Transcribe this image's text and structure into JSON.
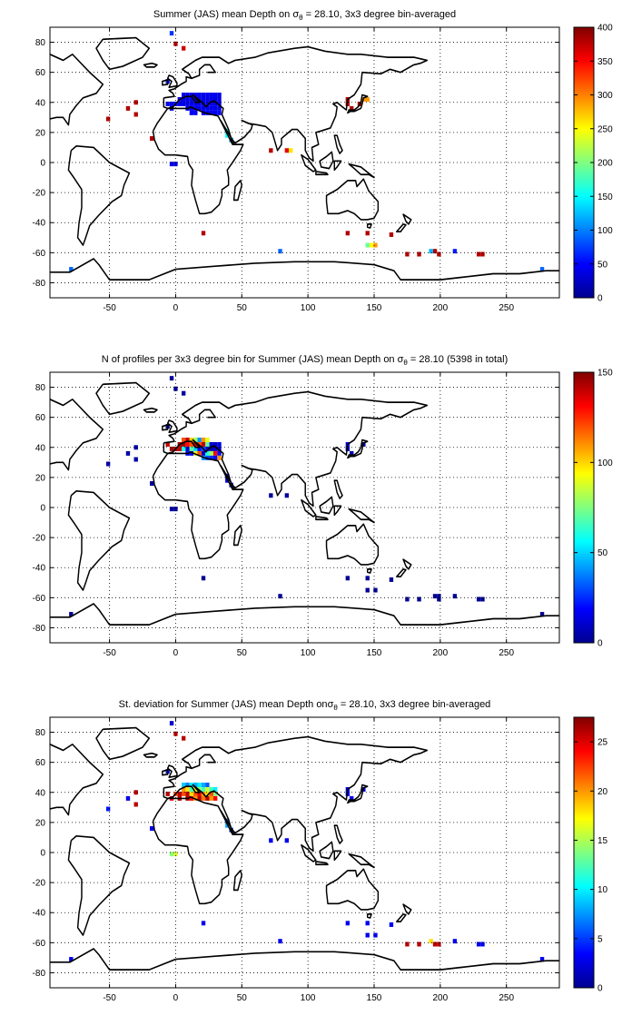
{
  "figure": {
    "background": "#ffffff",
    "axis_color": "#000000",
    "grid_style": "dotted",
    "coastline_color": "#000000"
  },
  "chart_data": [
    {
      "type": "heatmap",
      "panel": "top",
      "title": {
        "prefix": "Summer (JAS) mean Depth on ",
        "symbol": "σ",
        "subscript": "θ",
        "suffix": " = 28.10, 3x3 degree bin-averaged"
      },
      "xlim": [
        -95,
        290
      ],
      "ylim": [
        -90,
        90
      ],
      "xticks": [
        -50,
        0,
        50,
        100,
        150,
        200,
        250
      ],
      "yticks": [
        -80,
        -60,
        -40,
        -20,
        0,
        20,
        40,
        60,
        80
      ],
      "grid": true,
      "colorbar": {
        "colormap": "jet",
        "min": 0,
        "max": 400,
        "ticks": [
          0,
          50,
          100,
          150,
          200,
          250,
          300,
          350,
          400
        ]
      },
      "bins": [
        [
          -3,
          86,
          70
        ],
        [
          0,
          79,
          380
        ],
        [
          6,
          76,
          370
        ],
        [
          -6,
          54,
          60
        ],
        [
          -51,
          29,
          380
        ],
        [
          -36,
          36,
          380
        ],
        [
          -30,
          40,
          380
        ],
        [
          -30,
          32,
          380
        ],
        [
          -18,
          16,
          380
        ],
        [
          -6,
          39,
          45
        ],
        [
          -3,
          39,
          45
        ],
        [
          0,
          39,
          45
        ],
        [
          3,
          39,
          45
        ],
        [
          -3,
          36,
          40
        ],
        [
          3,
          42,
          40
        ],
        [
          6,
          42,
          40
        ],
        [
          9,
          42,
          40
        ],
        [
          12,
          42,
          40
        ],
        [
          15,
          42,
          40
        ],
        [
          18,
          42,
          40
        ],
        [
          21,
          42,
          40
        ],
        [
          24,
          42,
          40
        ],
        [
          27,
          42,
          40
        ],
        [
          30,
          42,
          40
        ],
        [
          33,
          42,
          40
        ],
        [
          6,
          45,
          42
        ],
        [
          9,
          45,
          42
        ],
        [
          12,
          45,
          42
        ],
        [
          15,
          45,
          42
        ],
        [
          18,
          45,
          42
        ],
        [
          21,
          45,
          42
        ],
        [
          24,
          45,
          42
        ],
        [
          27,
          45,
          42
        ],
        [
          30,
          45,
          42
        ],
        [
          33,
          45,
          42
        ],
        [
          6,
          39,
          42
        ],
        [
          9,
          39,
          42
        ],
        [
          12,
          39,
          42
        ],
        [
          15,
          39,
          42
        ],
        [
          18,
          39,
          42
        ],
        [
          21,
          39,
          42
        ],
        [
          24,
          39,
          42
        ],
        [
          27,
          39,
          42
        ],
        [
          30,
          39,
          42
        ],
        [
          33,
          39,
          42
        ],
        [
          9,
          36,
          42
        ],
        [
          12,
          36,
          42
        ],
        [
          15,
          36,
          42
        ],
        [
          18,
          36,
          42
        ],
        [
          21,
          36,
          42
        ],
        [
          24,
          36,
          42
        ],
        [
          27,
          36,
          42
        ],
        [
          30,
          36,
          42
        ],
        [
          33,
          36,
          42
        ],
        [
          12,
          33,
          45
        ],
        [
          15,
          33,
          45
        ],
        [
          21,
          33,
          45
        ],
        [
          24,
          33,
          45
        ],
        [
          27,
          33,
          45
        ],
        [
          30,
          33,
          45
        ],
        [
          33,
          33,
          45
        ],
        [
          39,
          21,
          150
        ],
        [
          39,
          18,
          150
        ],
        [
          42,
          15,
          110
        ],
        [
          -3,
          -1,
          40
        ],
        [
          0,
          -1,
          40
        ],
        [
          72,
          8,
          380
        ],
        [
          84,
          8,
          360
        ],
        [
          87,
          8,
          260
        ],
        [
          130,
          42,
          380
        ],
        [
          130,
          39,
          380
        ],
        [
          133,
          36,
          380
        ],
        [
          139,
          39,
          380
        ],
        [
          142,
          42,
          290
        ],
        [
          145,
          42,
          290
        ],
        [
          21,
          -47,
          380
        ],
        [
          130,
          -47,
          380
        ],
        [
          145,
          -47,
          380
        ],
        [
          163,
          -48,
          380
        ],
        [
          79,
          -59,
          90
        ],
        [
          145,
          -55,
          190
        ],
        [
          148,
          -55,
          250
        ],
        [
          151,
          -55,
          290
        ],
        [
          175,
          -61,
          380
        ],
        [
          184,
          -61,
          380
        ],
        [
          196,
          -59,
          380
        ],
        [
          199,
          -61,
          380
        ],
        [
          211,
          -59,
          60
        ],
        [
          229,
          -61,
          380
        ],
        [
          232,
          -61,
          380
        ],
        [
          -79,
          -71,
          90
        ],
        [
          277,
          -71,
          90
        ],
        [
          193,
          -59,
          120
        ]
      ]
    },
    {
      "type": "heatmap",
      "panel": "middle",
      "title": {
        "prefix": "N of profiles per 3x3 degree bin for Summer (JAS) mean Depth on ",
        "symbol": "σ",
        "subscript": "θ",
        "suffix": " = 28.10 (5398 in total)"
      },
      "xlim": [
        -95,
        290
      ],
      "ylim": [
        -90,
        90
      ],
      "xticks": [
        -50,
        0,
        50,
        100,
        150,
        200,
        250
      ],
      "yticks": [
        -80,
        -60,
        -40,
        -20,
        0,
        20,
        40,
        60,
        80
      ],
      "grid": true,
      "colorbar": {
        "colormap": "jet",
        "min": 0,
        "max": 150,
        "ticks": [
          0,
          50,
          100,
          150
        ]
      },
      "bins": [
        [
          -3,
          86,
          4
        ],
        [
          0,
          79,
          4
        ],
        [
          6,
          76,
          4
        ],
        [
          -6,
          54,
          4
        ],
        [
          -51,
          29,
          6
        ],
        [
          -36,
          36,
          6
        ],
        [
          -30,
          40,
          6
        ],
        [
          -30,
          32,
          6
        ],
        [
          -18,
          16,
          4
        ],
        [
          -6,
          42,
          140
        ],
        [
          -3,
          39,
          145
        ],
        [
          0,
          39,
          145
        ],
        [
          3,
          42,
          145
        ],
        [
          3,
          39,
          140
        ],
        [
          6,
          45,
          120
        ],
        [
          9,
          45,
          140
        ],
        [
          12,
          45,
          100
        ],
        [
          15,
          45,
          80
        ],
        [
          18,
          45,
          40
        ],
        [
          21,
          45,
          110
        ],
        [
          24,
          45,
          90
        ],
        [
          6,
          42,
          145
        ],
        [
          9,
          42,
          130
        ],
        [
          12,
          42,
          120
        ],
        [
          15,
          42,
          135
        ],
        [
          18,
          42,
          120
        ],
        [
          21,
          42,
          140
        ],
        [
          24,
          42,
          70
        ],
        [
          27,
          42,
          12
        ],
        [
          30,
          42,
          10
        ],
        [
          33,
          42,
          15
        ],
        [
          6,
          39,
          60
        ],
        [
          9,
          39,
          10
        ],
        [
          12,
          39,
          70
        ],
        [
          15,
          39,
          50
        ],
        [
          18,
          39,
          20
        ],
        [
          21,
          39,
          30
        ],
        [
          24,
          39,
          15
        ],
        [
          27,
          39,
          8
        ],
        [
          30,
          39,
          12
        ],
        [
          33,
          39,
          10
        ],
        [
          9,
          36,
          20
        ],
        [
          12,
          36,
          20
        ],
        [
          15,
          36,
          90
        ],
        [
          18,
          36,
          120
        ],
        [
          21,
          36,
          10
        ],
        [
          24,
          36,
          60
        ],
        [
          27,
          36,
          80
        ],
        [
          30,
          36,
          130
        ],
        [
          33,
          36,
          20
        ],
        [
          21,
          33,
          40
        ],
        [
          24,
          33,
          30
        ],
        [
          27,
          33,
          25
        ],
        [
          30,
          33,
          20
        ],
        [
          33,
          33,
          110
        ],
        [
          39,
          21,
          20
        ],
        [
          39,
          18,
          15
        ],
        [
          42,
          15,
          12
        ],
        [
          -3,
          -1,
          5
        ],
        [
          0,
          -1,
          5
        ],
        [
          72,
          8,
          4
        ],
        [
          84,
          8,
          4
        ],
        [
          130,
          42,
          15
        ],
        [
          130,
          39,
          10
        ],
        [
          133,
          36,
          8
        ],
        [
          142,
          42,
          8
        ],
        [
          21,
          -47,
          3
        ],
        [
          130,
          -47,
          3
        ],
        [
          145,
          -47,
          3
        ],
        [
          163,
          -48,
          3
        ],
        [
          79,
          -59,
          3
        ],
        [
          145,
          -55,
          3
        ],
        [
          151,
          -55,
          3
        ],
        [
          175,
          -61,
          3
        ],
        [
          184,
          -61,
          3
        ],
        [
          196,
          -59,
          3
        ],
        [
          199,
          -59,
          3
        ],
        [
          199,
          -61,
          3
        ],
        [
          211,
          -59,
          3
        ],
        [
          229,
          -61,
          3
        ],
        [
          232,
          -61,
          3
        ],
        [
          -79,
          -71,
          3
        ],
        [
          277,
          -71,
          3
        ]
      ]
    },
    {
      "type": "heatmap",
      "panel": "bottom",
      "title": {
        "prefix": "St. deviation for Summer (JAS) mean Depth on",
        "symbol": "σ",
        "subscript": "θ",
        "suffix": " = 28.10, 3x3 degree bin-averaged"
      },
      "xlim": [
        -95,
        290
      ],
      "ylim": [
        -90,
        90
      ],
      "xticks": [
        -50,
        0,
        50,
        100,
        150,
        200,
        250
      ],
      "yticks": [
        -80,
        -60,
        -40,
        -20,
        0,
        20,
        40,
        60,
        80
      ],
      "grid": true,
      "colorbar": {
        "colormap": "jet",
        "min": 0,
        "max": 27.5,
        "ticks": [
          0,
          5,
          10,
          15,
          20,
          25
        ]
      },
      "bins": [
        [
          -3,
          86,
          2
        ],
        [
          0,
          79,
          26
        ],
        [
          6,
          76,
          26
        ],
        [
          -6,
          54,
          4
        ],
        [
          -51,
          29,
          4
        ],
        [
          -36,
          36,
          3
        ],
        [
          -30,
          40,
          26
        ],
        [
          -30,
          32,
          26
        ],
        [
          -18,
          16,
          3
        ],
        [
          -6,
          39,
          26
        ],
        [
          -3,
          36,
          24
        ],
        [
          0,
          39,
          22
        ],
        [
          3,
          39,
          26
        ],
        [
          6,
          45,
          9
        ],
        [
          9,
          45,
          7
        ],
        [
          12,
          45,
          10
        ],
        [
          15,
          45,
          8
        ],
        [
          18,
          45,
          10
        ],
        [
          21,
          45,
          8
        ],
        [
          24,
          45,
          6
        ],
        [
          6,
          42,
          20
        ],
        [
          9,
          42,
          18
        ],
        [
          12,
          42,
          12
        ],
        [
          15,
          42,
          17
        ],
        [
          18,
          42,
          14
        ],
        [
          21,
          42,
          12
        ],
        [
          24,
          42,
          16
        ],
        [
          27,
          42,
          12
        ],
        [
          30,
          42,
          10
        ],
        [
          3,
          36,
          26
        ],
        [
          6,
          39,
          22
        ],
        [
          9,
          39,
          26
        ],
        [
          12,
          39,
          18
        ],
        [
          15,
          39,
          22
        ],
        [
          18,
          39,
          25
        ],
        [
          21,
          39,
          20
        ],
        [
          24,
          39,
          18
        ],
        [
          27,
          39,
          22
        ],
        [
          30,
          39,
          14
        ],
        [
          9,
          36,
          26
        ],
        [
          12,
          36,
          24
        ],
        [
          15,
          36,
          20
        ],
        [
          18,
          36,
          26
        ],
        [
          21,
          36,
          21
        ],
        [
          24,
          36,
          26
        ],
        [
          27,
          36,
          20
        ],
        [
          30,
          36,
          24
        ],
        [
          39,
          21,
          6
        ],
        [
          39,
          18,
          8
        ],
        [
          42,
          15,
          5
        ],
        [
          -3,
          -1,
          14
        ],
        [
          0,
          -1,
          16
        ],
        [
          72,
          8,
          3
        ],
        [
          84,
          8,
          3
        ],
        [
          130,
          42,
          3
        ],
        [
          130,
          39,
          3
        ],
        [
          133,
          36,
          3
        ],
        [
          142,
          42,
          3
        ],
        [
          21,
          -47,
          3
        ],
        [
          130,
          -47,
          3
        ],
        [
          145,
          -47,
          3
        ],
        [
          163,
          -48,
          3
        ],
        [
          79,
          -59,
          3
        ],
        [
          145,
          -55,
          3
        ],
        [
          151,
          -55,
          3
        ],
        [
          175,
          -61,
          26
        ],
        [
          184,
          -61,
          26
        ],
        [
          193,
          -59,
          18
        ],
        [
          196,
          -61,
          26
        ],
        [
          199,
          -61,
          26
        ],
        [
          211,
          -59,
          3
        ],
        [
          229,
          -61,
          3
        ],
        [
          232,
          -61,
          3
        ],
        [
          -79,
          -71,
          3
        ],
        [
          277,
          -71,
          3
        ]
      ]
    }
  ]
}
